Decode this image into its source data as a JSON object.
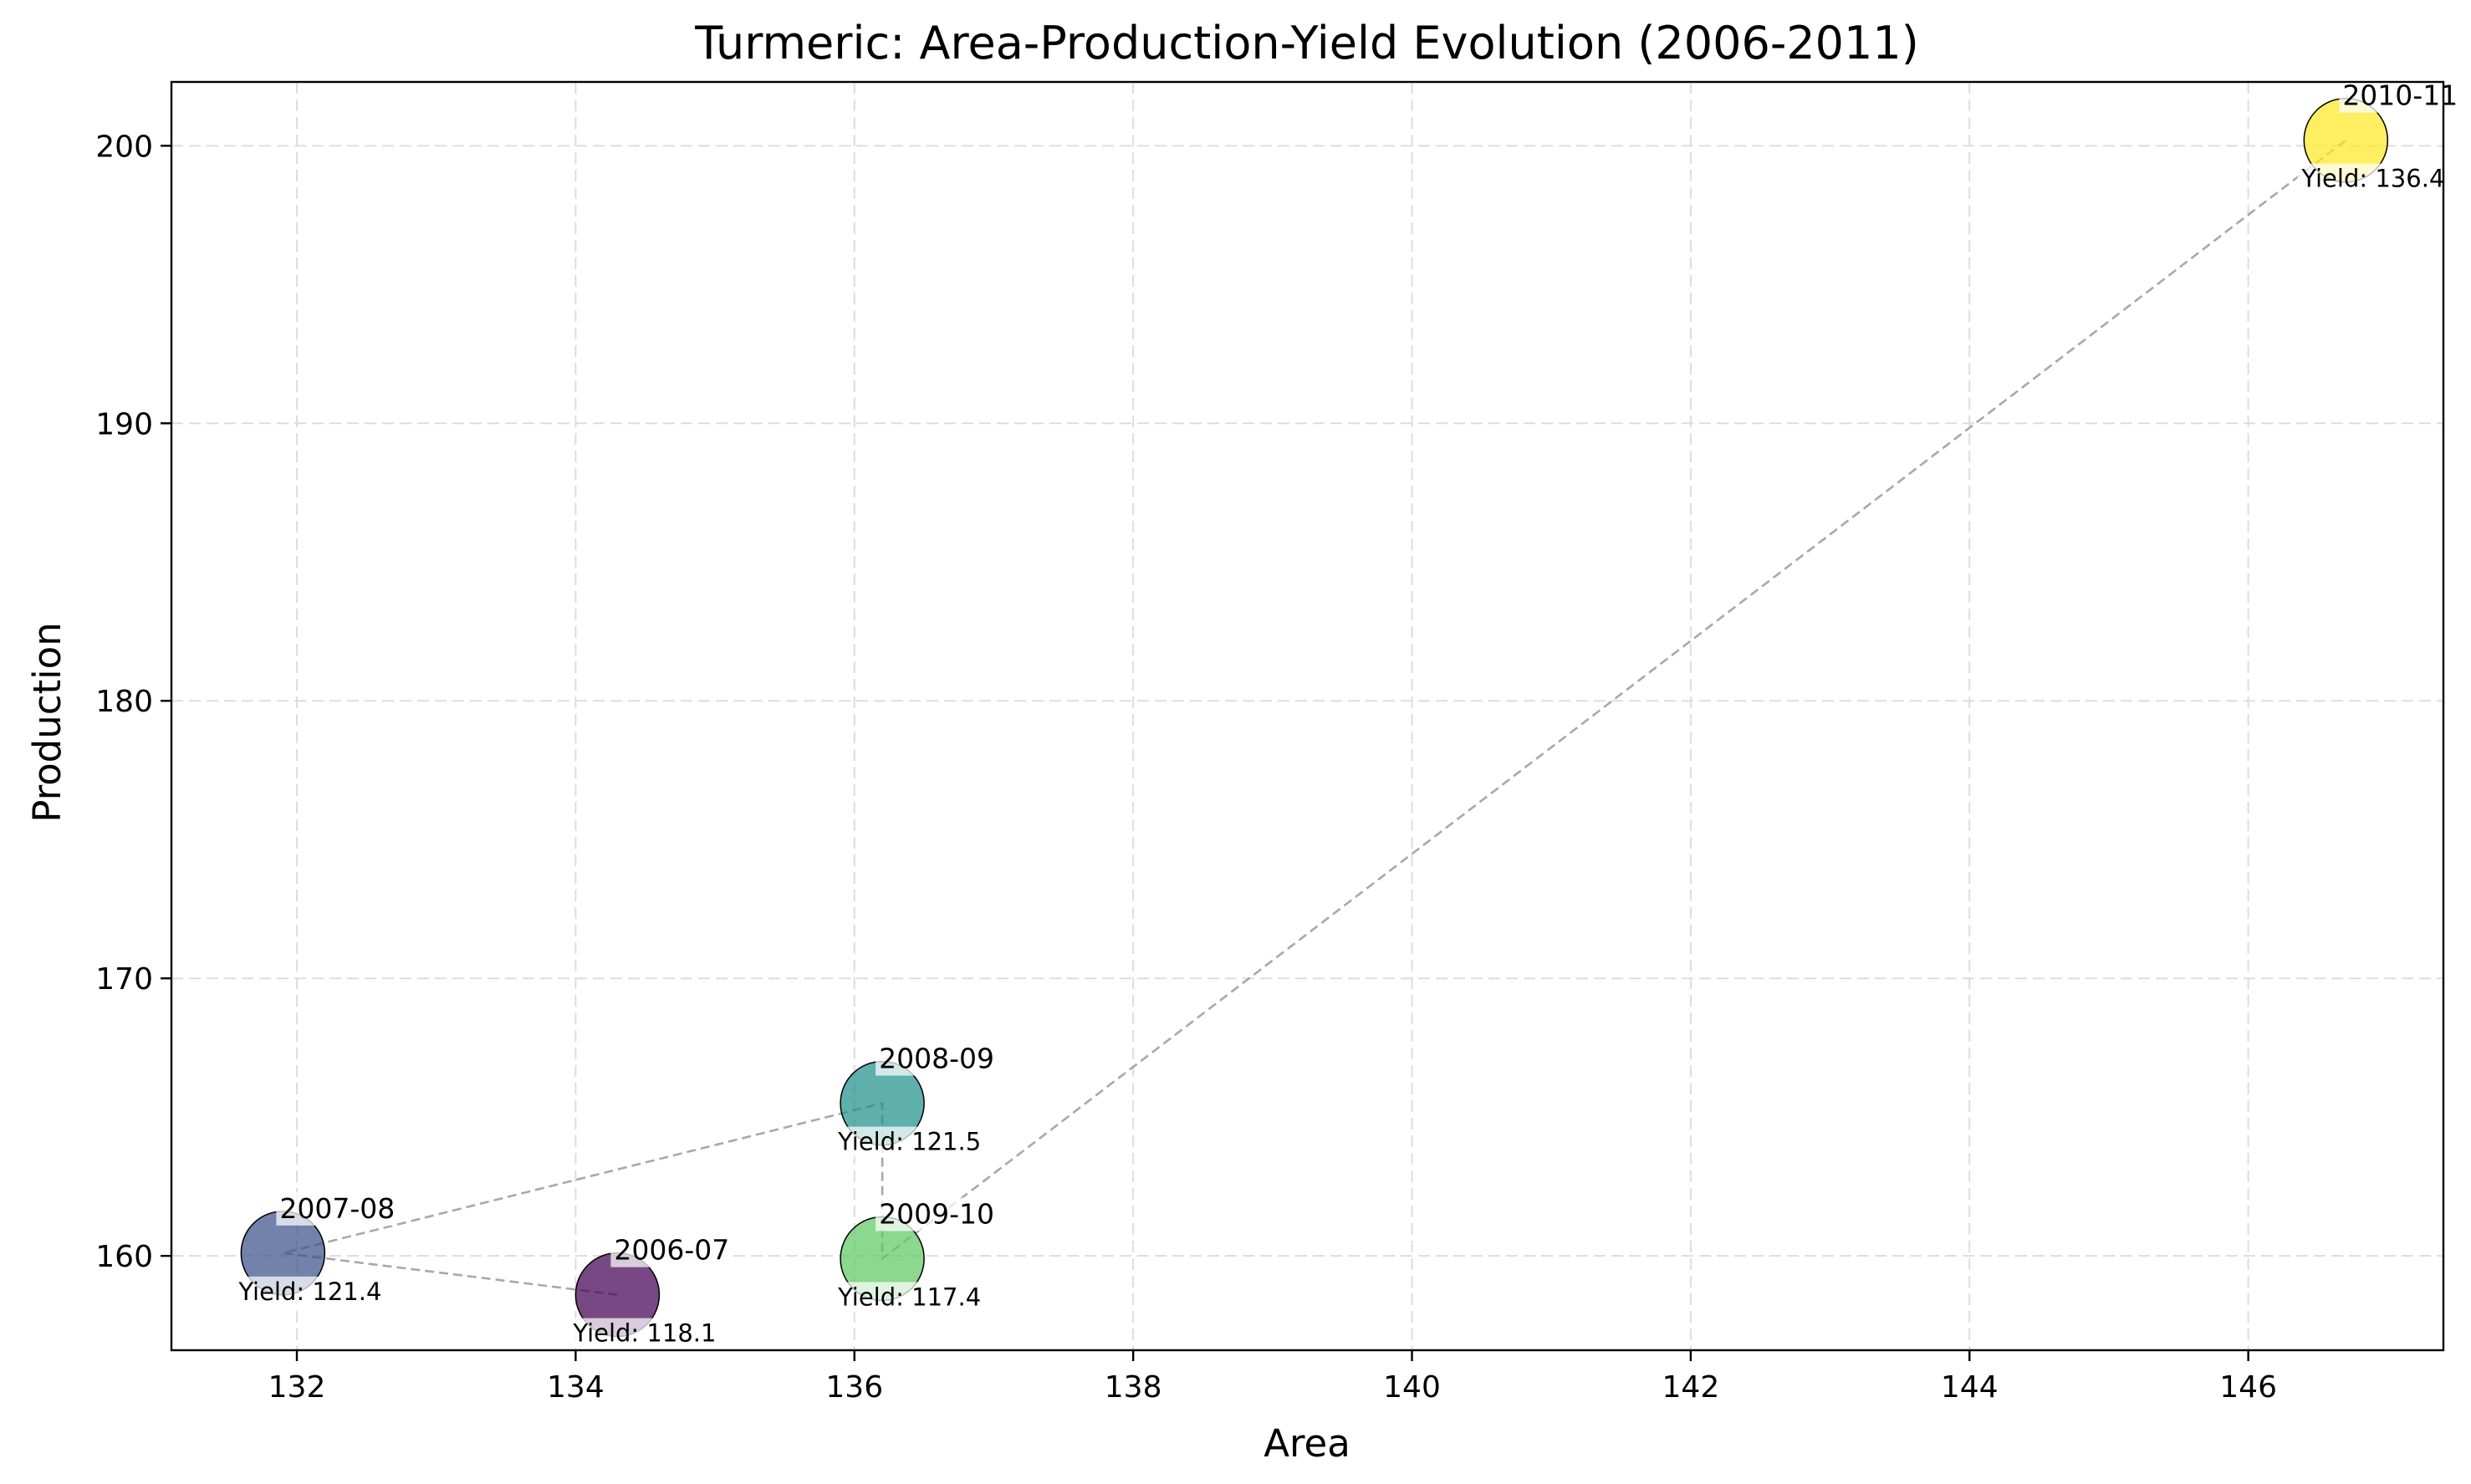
{
  "chart_data": {
    "type": "scatter",
    "title": "Turmeric: Area-Production-Yield Evolution (2006-2011)",
    "xlabel": "Area",
    "ylabel": "Production",
    "xlim": [
      131.1,
      147.4
    ],
    "ylim": [
      156.6,
      202.3
    ],
    "xticks": [
      132,
      134,
      136,
      138,
      140,
      142,
      144,
      146
    ],
    "yticks": [
      160,
      170,
      180,
      190,
      200
    ],
    "grid": true,
    "connector": "dashed gray line joining points in chronological order",
    "points": [
      {
        "label": "2006-07",
        "area": 134.3,
        "production": 158.6,
        "yield_label": "Yield: 118.1",
        "color": "#440154"
      },
      {
        "label": "2007-08",
        "area": 131.9,
        "production": 160.1,
        "yield_label": "Yield: 121.4",
        "color": "#3b528b"
      },
      {
        "label": "2008-09",
        "area": 136.2,
        "production": 165.5,
        "yield_label": "Yield: 121.5",
        "color": "#21918c"
      },
      {
        "label": "2009-10",
        "area": 136.2,
        "production": 159.9,
        "yield_label": "Yield: 117.4",
        "color": "#5ec962"
      },
      {
        "label": "2010-11",
        "area": 146.7,
        "production": 200.2,
        "yield_label": "Yield: 136.4",
        "color": "#fde725"
      }
    ]
  }
}
